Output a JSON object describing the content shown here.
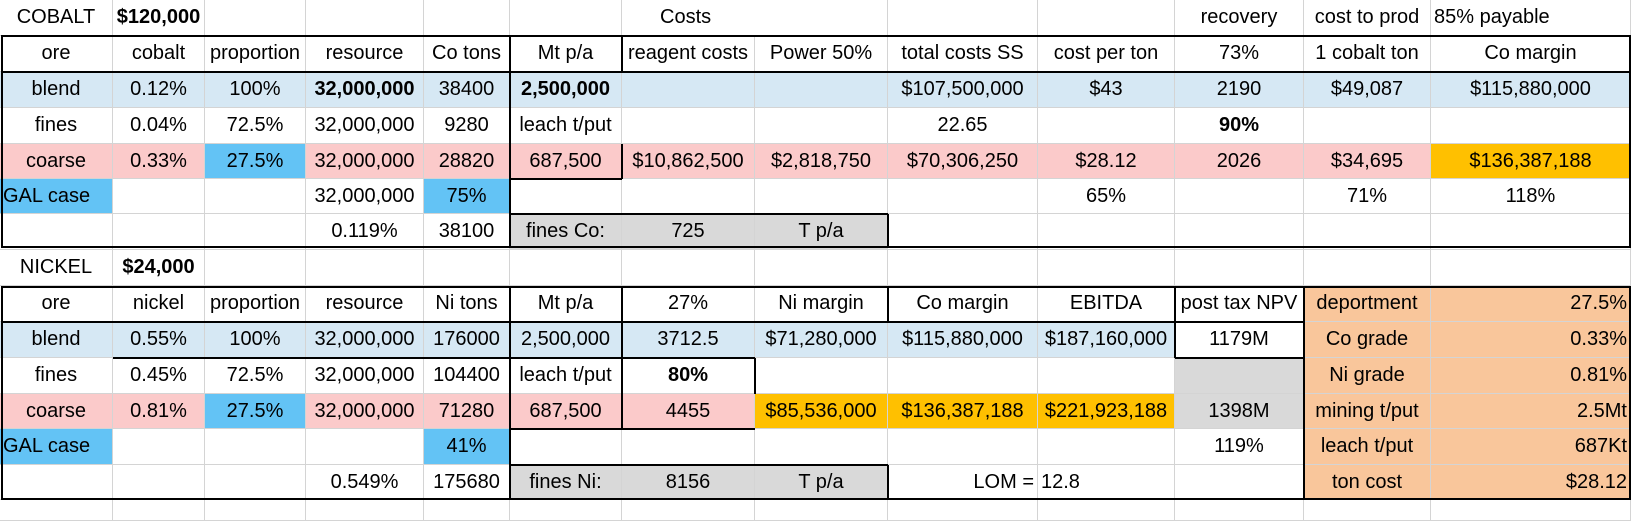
{
  "cobalt": {
    "title": "COBALT",
    "price": "$120,000",
    "header_labels": {
      "costs": "Costs",
      "recovery": "recovery",
      "cost_to_prod": "cost to prod",
      "payable": "85% payable"
    },
    "columns": [
      "ore",
      "cobalt",
      "proportion",
      "resource",
      "Co tons",
      "Mt p/a",
      "reagent costs",
      "Power 50%",
      "total costs SS",
      "cost per ton",
      "73%",
      "1 cobalt ton",
      "Co margin"
    ],
    "rows": [
      [
        "blend",
        "0.12%",
        "100%",
        "32,000,000",
        "38400",
        "2,500,000",
        "",
        "",
        "$107,500,000",
        "$43",
        "2190",
        "$49,087",
        "$115,880,000"
      ],
      [
        "fines",
        "0.04%",
        "72.5%",
        "32,000,000",
        "9280",
        "leach t/put",
        "",
        "",
        "22.65",
        "",
        "90%",
        "",
        ""
      ],
      [
        "coarse",
        "0.33%",
        "27.5%",
        "32,000,000",
        "28820",
        "687,500",
        "$10,862,500",
        "$2,818,750",
        "$70,306,250",
        "$28.12",
        "2026",
        "$34,695",
        "$136,387,188"
      ],
      [
        "GAL case",
        "",
        "",
        "32,000,000",
        "75%",
        "",
        "",
        "",
        "",
        "65%",
        "",
        "71%",
        "118%"
      ],
      [
        "",
        "",
        "",
        "0.119%",
        "38100",
        "fines Co:",
        "725",
        "T p/a",
        "",
        "",
        "",
        "",
        ""
      ]
    ]
  },
  "nickel": {
    "title": "NICKEL",
    "price": "$24,000",
    "columns": [
      "ore",
      "nickel",
      "proportion",
      "resource",
      "Ni tons",
      "Mt p/a",
      "27%",
      "Ni margin",
      "Co margin",
      "EBITDA",
      "post tax NPV",
      "deportment",
      "27.5%"
    ],
    "rows": [
      [
        "blend",
        "0.55%",
        "100%",
        "32,000,000",
        "176000",
        "2,500,000",
        "3712.5",
        "$71,280,000",
        "$115,880,000",
        "$187,160,000",
        "1179M",
        "Co grade",
        "0.33%"
      ],
      [
        "fines",
        "0.45%",
        "72.5%",
        "32,000,000",
        "104400",
        "leach t/put",
        "80%",
        "",
        "",
        "",
        "",
        "Ni grade",
        "0.81%"
      ],
      [
        "coarse",
        "0.81%",
        "27.5%",
        "32,000,000",
        "71280",
        "687,500",
        "4455",
        "$85,536,000",
        "$136,387,188",
        "$221,923,188",
        "1398M",
        "mining t/put",
        "2.5Mt"
      ],
      [
        "GAL case",
        "",
        "",
        "",
        "41%",
        "",
        "",
        "",
        "",
        "",
        "119%",
        "leach t/put",
        "687Kt"
      ],
      [
        "",
        "",
        "",
        "0.549%",
        "175680",
        "fines Ni:",
        "8156",
        "T p/a",
        "LOM = ",
        "12.8",
        "",
        "ton cost",
        "$28.12"
      ]
    ]
  }
}
